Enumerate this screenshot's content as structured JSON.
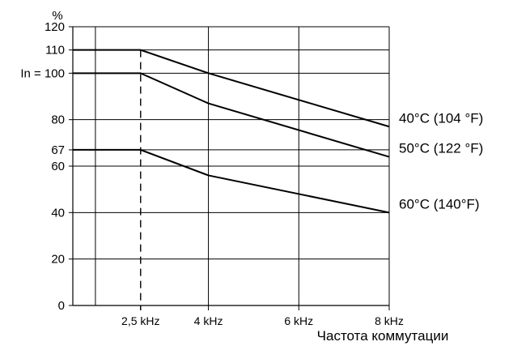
{
  "chart_data": {
    "type": "line",
    "title": "",
    "ylabel": "%",
    "xlabel": "Частота коммутации",
    "xlim": [
      1.0,
      8.0
    ],
    "ylim": [
      0,
      120
    ],
    "grid": true,
    "y_ticks": [
      {
        "value": 0,
        "label": "0"
      },
      {
        "value": 20,
        "label": "20"
      },
      {
        "value": 40,
        "label": "40"
      },
      {
        "value": 60,
        "label": "60"
      },
      {
        "value": 67,
        "label": "67"
      },
      {
        "value": 80,
        "label": "80"
      },
      {
        "value": 100,
        "label": "In = 100"
      },
      {
        "value": 110,
        "label": "110"
      },
      {
        "value": 120,
        "label": "120"
      }
    ],
    "x_ticks": [
      {
        "value": 2.5,
        "label": "2,5 kHz"
      },
      {
        "value": 4,
        "label": "4 kHz"
      },
      {
        "value": 6,
        "label": "6 kHz"
      },
      {
        "value": 8,
        "label": "8 kHz"
      }
    ],
    "x_gridlines": [
      1.5,
      4,
      6,
      8
    ],
    "reference_line": {
      "x": 2.5,
      "style": "dashed"
    },
    "series": [
      {
        "name": "40°C (104 °F)",
        "x": [
          1.0,
          2.5,
          4,
          8
        ],
        "y": [
          110,
          110,
          100,
          77
        ]
      },
      {
        "name": "50°C (122 °F)",
        "x": [
          1.0,
          2.5,
          4,
          8
        ],
        "y": [
          100,
          100,
          87,
          64
        ]
      },
      {
        "name": "60°C (140°F)",
        "x": [
          1.0,
          2.5,
          4,
          8
        ],
        "y": [
          67,
          67,
          56,
          40
        ]
      }
    ]
  }
}
